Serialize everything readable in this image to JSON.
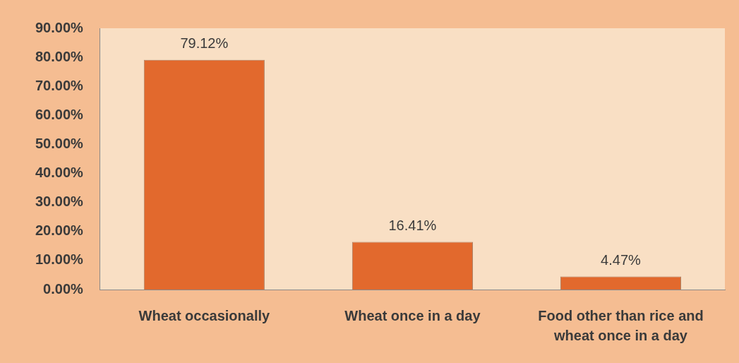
{
  "chart_data": {
    "type": "bar",
    "categories": [
      "Wheat occasionally",
      "Wheat once in a day",
      "Food other than rice and wheat once in a day"
    ],
    "values": [
      79.12,
      16.41,
      4.47
    ],
    "color": "#e2692d",
    "value_labels": [
      "79.12%",
      "16.41%",
      "4.47%"
    ],
    "ylim": [
      0,
      90
    ],
    "yticks": [
      {
        "value": 0,
        "label": "0.00%"
      },
      {
        "value": 10,
        "label": "10.00%"
      },
      {
        "value": 20,
        "label": "20.00%"
      },
      {
        "value": 30,
        "label": "30.00%"
      },
      {
        "value": 40,
        "label": "40.00%"
      },
      {
        "value": 50,
        "label": "50.00%"
      },
      {
        "value": 60,
        "label": "60.00%"
      },
      {
        "value": 70,
        "label": "70.00%"
      },
      {
        "value": 80,
        "label": "80.00%"
      },
      {
        "value": 90,
        "label": "90.00%"
      }
    ],
    "grid": false
  }
}
